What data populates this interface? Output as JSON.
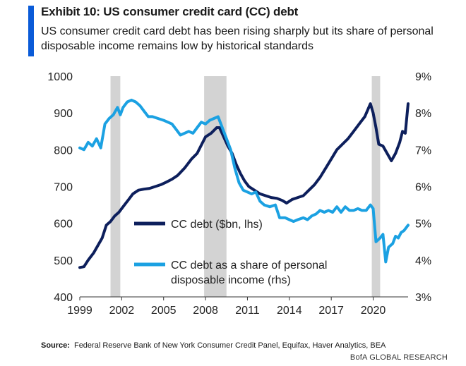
{
  "header": {
    "title": "Exhibit 10: US consumer credit card (CC) debt",
    "subtitle": "US consumer credit card debt has been rising sharply but its share of personal disposable income remains low by historical standards"
  },
  "footer": {
    "source_label": "Source:",
    "source_text": "Federal Reserve Bank of New York Consumer Credit Panel, Equifax, Haver Analytics, BEA",
    "credit": "BofA GLOBAL RESEARCH"
  },
  "colors": {
    "accent": "#0a5bd8",
    "debt_series": "#0d1f5c",
    "share_series": "#1ba1e2",
    "recession": "#d3d3d3",
    "axis": "#333333"
  },
  "chart_data": {
    "type": "line",
    "title": "Exhibit 10: US consumer credit card (CC) debt",
    "xlabel": "",
    "x_ticks": [
      "1999",
      "2002",
      "2005",
      "2008",
      "2011",
      "2014",
      "2017",
      "2020"
    ],
    "xlim": [
      1999,
      2022.5
    ],
    "y_left": {
      "label": "",
      "lim": [
        400,
        1000
      ],
      "ticks": [
        "1000",
        "900",
        "800",
        "700",
        "600",
        "500",
        "400"
      ]
    },
    "y_right": {
      "label": "",
      "lim": [
        3,
        9
      ],
      "ticks": [
        "9%",
        "8%",
        "7%",
        "6%",
        "5%",
        "4%",
        "3%"
      ]
    },
    "grid": false,
    "recessions": [
      [
        2001.2,
        2001.9
      ],
      [
        2007.9,
        2009.5
      ],
      [
        2019.9,
        2020.5
      ]
    ],
    "legend_position": "center",
    "series": [
      {
        "name": "CC debt ($bn, lhs)",
        "axis": "left",
        "points": [
          [
            1999.0,
            480
          ],
          [
            1999.3,
            482
          ],
          [
            1999.6,
            500
          ],
          [
            2000.0,
            520
          ],
          [
            2000.3,
            540
          ],
          [
            2000.6,
            560
          ],
          [
            2000.9,
            595
          ],
          [
            2001.2,
            605
          ],
          [
            2001.5,
            620
          ],
          [
            2001.8,
            630
          ],
          [
            2002.2,
            650
          ],
          [
            2002.5,
            665
          ],
          [
            2002.8,
            680
          ],
          [
            2003.2,
            690
          ],
          [
            2003.6,
            693
          ],
          [
            2004.0,
            695
          ],
          [
            2004.4,
            700
          ],
          [
            2004.8,
            705
          ],
          [
            2005.2,
            712
          ],
          [
            2005.6,
            720
          ],
          [
            2006.0,
            730
          ],
          [
            2006.5,
            750
          ],
          [
            2007.0,
            775
          ],
          [
            2007.4,
            790
          ],
          [
            2007.8,
            820
          ],
          [
            2008.0,
            835
          ],
          [
            2008.4,
            845
          ],
          [
            2008.8,
            860
          ],
          [
            2009.0,
            860
          ],
          [
            2009.3,
            835
          ],
          [
            2009.6,
            810
          ],
          [
            2009.9,
            790
          ],
          [
            2010.2,
            760
          ],
          [
            2010.5,
            735
          ],
          [
            2010.8,
            715
          ],
          [
            2011.1,
            700
          ],
          [
            2011.5,
            690
          ],
          [
            2011.9,
            680
          ],
          [
            2012.3,
            675
          ],
          [
            2012.7,
            670
          ],
          [
            2013.1,
            668
          ],
          [
            2013.5,
            662
          ],
          [
            2013.8,
            655
          ],
          [
            2014.2,
            665
          ],
          [
            2014.6,
            670
          ],
          [
            2015.0,
            675
          ],
          [
            2015.4,
            690
          ],
          [
            2015.8,
            705
          ],
          [
            2016.2,
            725
          ],
          [
            2016.6,
            750
          ],
          [
            2017.0,
            775
          ],
          [
            2017.4,
            800
          ],
          [
            2017.8,
            815
          ],
          [
            2018.2,
            830
          ],
          [
            2018.6,
            850
          ],
          [
            2019.0,
            870
          ],
          [
            2019.4,
            890
          ],
          [
            2019.8,
            925
          ],
          [
            2020.0,
            900
          ],
          [
            2020.2,
            860
          ],
          [
            2020.4,
            815
          ],
          [
            2020.7,
            810
          ],
          [
            2021.0,
            790
          ],
          [
            2021.3,
            770
          ],
          [
            2021.6,
            790
          ],
          [
            2021.9,
            820
          ],
          [
            2022.1,
            850
          ],
          [
            2022.3,
            845
          ],
          [
            2022.5,
            925
          ]
        ]
      },
      {
        "name": "CC debt as a share of personal disposable income (rhs)",
        "axis": "right",
        "points": [
          [
            1999.0,
            7.05
          ],
          [
            1999.3,
            7.0
          ],
          [
            1999.6,
            7.2
          ],
          [
            1999.9,
            7.1
          ],
          [
            2000.2,
            7.3
          ],
          [
            2000.5,
            7.05
          ],
          [
            2000.8,
            7.7
          ],
          [
            2001.1,
            7.85
          ],
          [
            2001.4,
            7.95
          ],
          [
            2001.7,
            8.15
          ],
          [
            2001.9,
            7.95
          ],
          [
            2002.1,
            8.15
          ],
          [
            2002.4,
            8.3
          ],
          [
            2002.7,
            8.35
          ],
          [
            2003.0,
            8.3
          ],
          [
            2003.3,
            8.2
          ],
          [
            2003.6,
            8.05
          ],
          [
            2003.9,
            7.9
          ],
          [
            2004.2,
            7.9
          ],
          [
            2004.6,
            7.85
          ],
          [
            2005.0,
            7.8
          ],
          [
            2005.3,
            7.75
          ],
          [
            2005.6,
            7.7
          ],
          [
            2005.9,
            7.55
          ],
          [
            2006.2,
            7.4
          ],
          [
            2006.5,
            7.45
          ],
          [
            2006.8,
            7.5
          ],
          [
            2007.1,
            7.45
          ],
          [
            2007.4,
            7.6
          ],
          [
            2007.7,
            7.75
          ],
          [
            2008.0,
            7.7
          ],
          [
            2008.3,
            7.8
          ],
          [
            2008.6,
            7.85
          ],
          [
            2008.9,
            7.9
          ],
          [
            2009.2,
            7.6
          ],
          [
            2009.5,
            7.3
          ],
          [
            2009.8,
            7.0
          ],
          [
            2010.1,
            6.5
          ],
          [
            2010.4,
            6.1
          ],
          [
            2010.7,
            5.9
          ],
          [
            2011.0,
            5.85
          ],
          [
            2011.3,
            5.8
          ],
          [
            2011.6,
            5.85
          ],
          [
            2011.9,
            5.6
          ],
          [
            2012.2,
            5.5
          ],
          [
            2012.6,
            5.45
          ],
          [
            2013.0,
            5.5
          ],
          [
            2013.3,
            5.15
          ],
          [
            2013.7,
            5.15
          ],
          [
            2014.0,
            5.1
          ],
          [
            2014.3,
            5.05
          ],
          [
            2014.6,
            5.1
          ],
          [
            2015.0,
            5.15
          ],
          [
            2015.3,
            5.1
          ],
          [
            2015.6,
            5.2
          ],
          [
            2015.9,
            5.25
          ],
          [
            2016.2,
            5.35
          ],
          [
            2016.5,
            5.3
          ],
          [
            2016.8,
            5.35
          ],
          [
            2017.1,
            5.3
          ],
          [
            2017.4,
            5.45
          ],
          [
            2017.7,
            5.3
          ],
          [
            2018.0,
            5.45
          ],
          [
            2018.3,
            5.35
          ],
          [
            2018.6,
            5.35
          ],
          [
            2018.9,
            5.4
          ],
          [
            2019.2,
            5.35
          ],
          [
            2019.5,
            5.35
          ],
          [
            2019.8,
            5.5
          ],
          [
            2020.0,
            5.4
          ],
          [
            2020.2,
            4.5
          ],
          [
            2020.5,
            4.6
          ],
          [
            2020.7,
            4.7
          ],
          [
            2020.9,
            3.95
          ],
          [
            2021.1,
            4.35
          ],
          [
            2021.4,
            4.45
          ],
          [
            2021.6,
            4.65
          ],
          [
            2021.8,
            4.6
          ],
          [
            2022.0,
            4.75
          ],
          [
            2022.2,
            4.8
          ],
          [
            2022.5,
            4.95
          ]
        ]
      }
    ]
  }
}
